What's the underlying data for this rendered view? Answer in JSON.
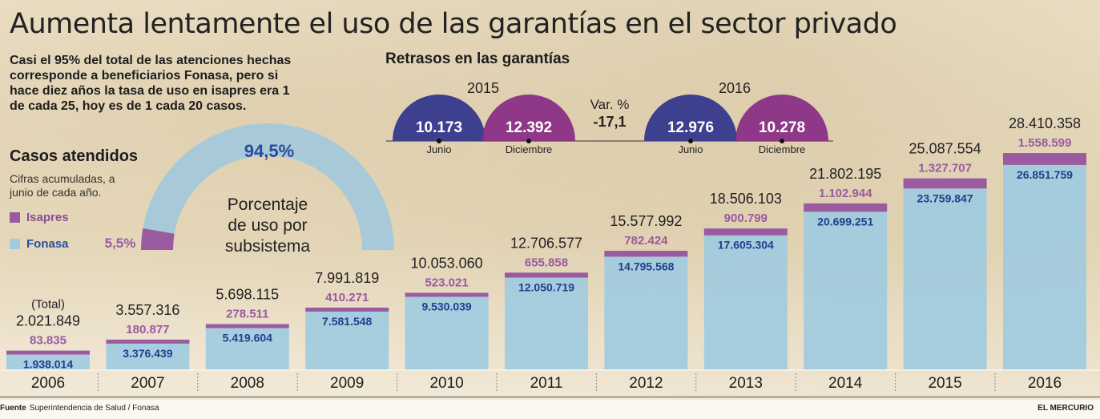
{
  "title": "Aumenta lentamente el uso de las garantías en el sector privado",
  "intro": "Casi el 95% del total de las atenciones hechas corresponde a beneficiarios Fonasa, pero si hace diez años la tasa de uso en isapres era 1 de cada 25, hoy es de 1 cada 20 casos.",
  "casos": {
    "title": "Casos atendidos",
    "subtitle": "Cifras acumuladas, a junio de cada año.",
    "legend_isapres": "Isapres",
    "legend_fonasa": "Fonasa",
    "total_label": "(Total)"
  },
  "colors": {
    "fonasa": "#9fcbe0",
    "fonasa_text": "#1f3f8f",
    "isapres": "#9a5ba0",
    "isapres_text": "#9b5aa2",
    "half_blue": "#3d3f8f",
    "half_purple": "#8b2f86",
    "donut_light": "#a8cad8",
    "donut_purple": "#9a5ba0"
  },
  "donut": {
    "fonasa_pct": "94,5%",
    "isapres_pct": "5,5%",
    "fonasa_value": 94.5,
    "isapres_value": 5.5,
    "label": "Porcentaje de uso por subsistema"
  },
  "retrasos": {
    "title": "Retrasos en las garantías",
    "var_label": "Var. %",
    "var_value": "-17,1",
    "years": [
      {
        "year": "2015",
        "junio": "10.173",
        "diciembre": "12.392",
        "junio_value": 10173,
        "diciembre_value": 12392
      },
      {
        "year": "2016",
        "junio": "12.976",
        "diciembre": "10.278",
        "junio_value": 12976,
        "diciembre_value": 10278
      }
    ],
    "junio_label": "Junio",
    "diciembre_label": "Diciembre"
  },
  "chart_data": {
    "type": "bar",
    "stacked": true,
    "title": "Casos atendidos",
    "subtitle": "Cifras acumuladas, a junio de cada año.",
    "categories": [
      "2006",
      "2007",
      "2008",
      "2009",
      "2010",
      "2011",
      "2012",
      "2013",
      "2014",
      "2015",
      "2016"
    ],
    "series": [
      {
        "name": "Fonasa",
        "values": [
          1938014,
          3376439,
          5419604,
          7581548,
          9530039,
          12050719,
          14795568,
          17605304,
          20699251,
          23759847,
          26851759
        ],
        "labels": [
          "1.938.014",
          "3.376.439",
          "5.419.604",
          "7.581.548",
          "9.530.039",
          "12.050.719",
          "14.795.568",
          "17.605.304",
          "20.699.251",
          "23.759.847",
          "26.851.759"
        ]
      },
      {
        "name": "Isapres",
        "values": [
          83835,
          180877,
          278511,
          410271,
          523021,
          655858,
          782424,
          900799,
          1102944,
          1327707,
          1558599
        ],
        "labels": [
          "83.835",
          "180.877",
          "278.511",
          "410.271",
          "523.021",
          "655.858",
          "782.424",
          "900.799",
          "1.102.944",
          "1.327.707",
          "1.558.599"
        ]
      }
    ],
    "totals": [
      2021849,
      3557316,
      5698115,
      7991819,
      10053060,
      12706577,
      15577992,
      18506103,
      21802195,
      25087554,
      28410358
    ],
    "total_labels": [
      "2.021.849",
      "3.557.316",
      "5.698.115",
      "7.991.819",
      "10.053.060",
      "12.706.577",
      "15.577.992",
      "18.506.103",
      "21.802.195",
      "25.087.554",
      "28.410.358"
    ]
  },
  "footer": {
    "source_label": "Fuente",
    "source": "Superintendencia de Salud / Fonasa",
    "brand": "EL MERCURIO"
  }
}
